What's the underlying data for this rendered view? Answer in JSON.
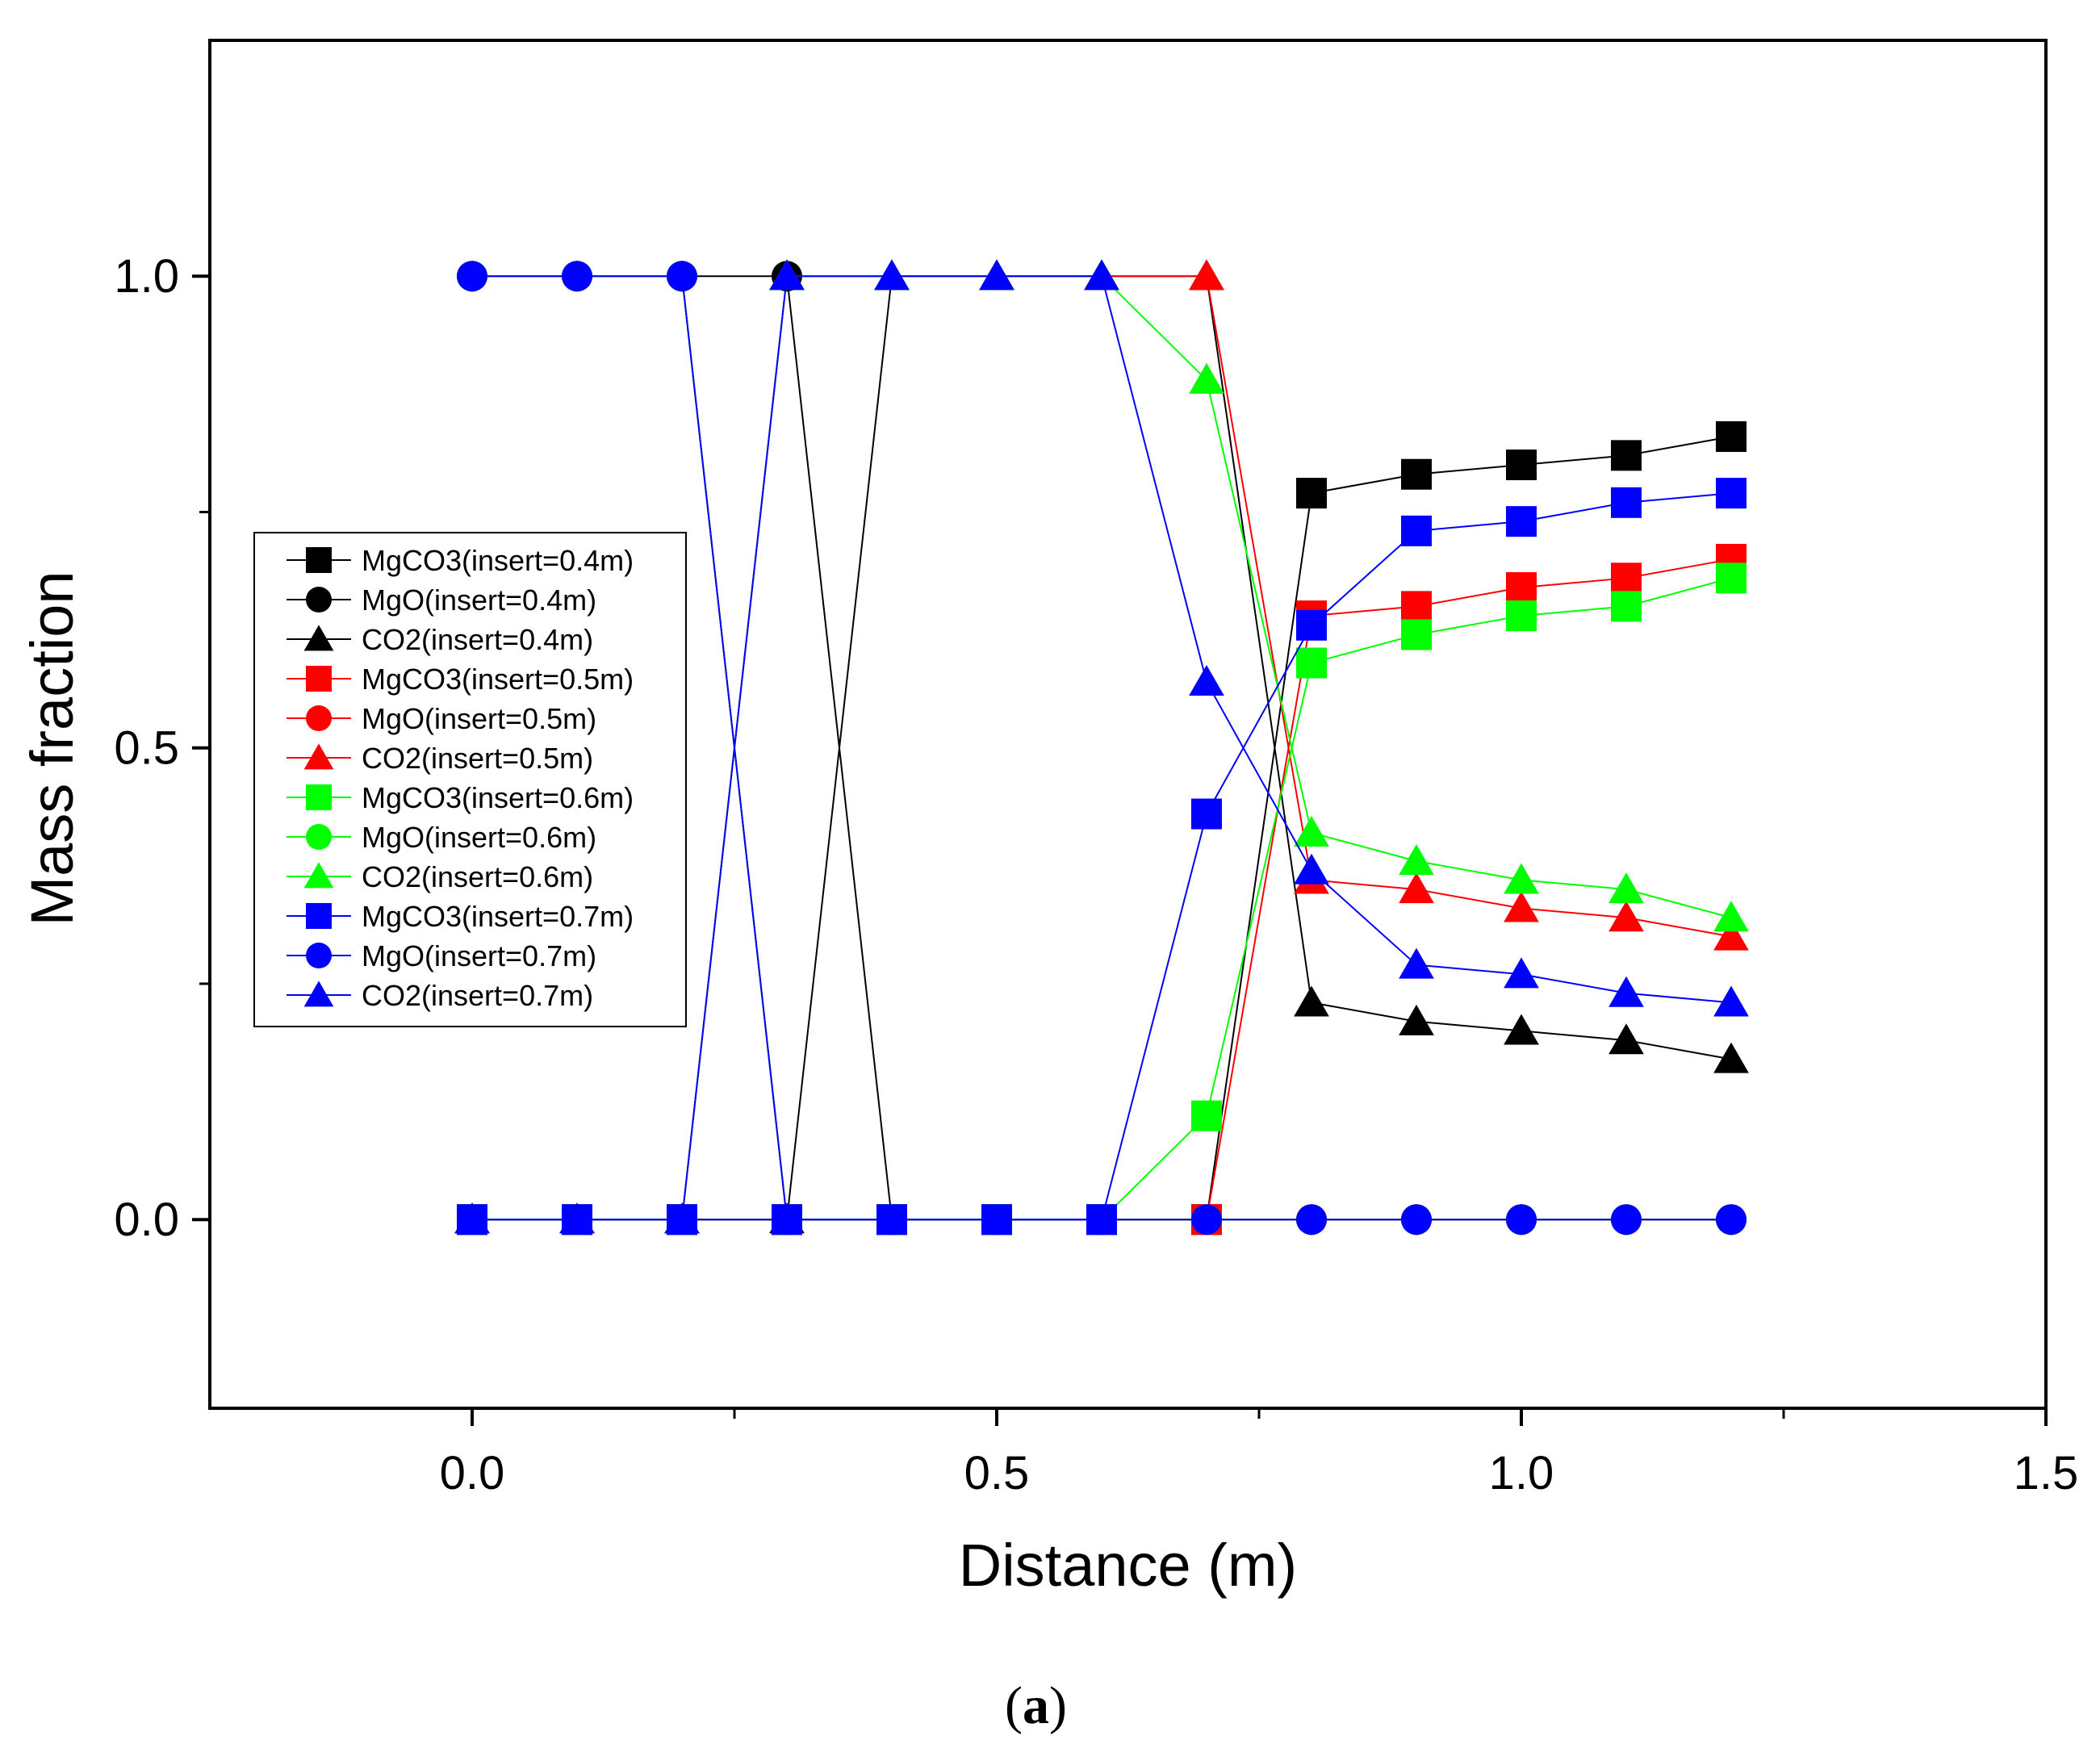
{
  "chart_data": {
    "type": "line",
    "title": "",
    "xlabel": "Distance (m)",
    "ylabel": "Mass fraction",
    "xlim": [
      -0.25,
      1.5
    ],
    "ylim": [
      -0.2,
      1.25
    ],
    "xticks": [
      0.0,
      0.5,
      1.0,
      1.5
    ],
    "xtick_labels": [
      "0.0",
      "0.5",
      "1.0",
      "1.5"
    ],
    "yticks": [
      0.0,
      0.5,
      1.0
    ],
    "ytick_labels": [
      "0.0",
      "0.5",
      "1.0"
    ],
    "grid": false,
    "legend_position": "center-left",
    "caption": "(a)",
    "series": [
      {
        "name": "MgCO3(insert=0.4m)",
        "color": "#000000",
        "marker": "square",
        "x": [
          0.0,
          0.1,
          0.2,
          0.3,
          0.4,
          0.5,
          0.6,
          0.7,
          0.8,
          0.9,
          1.0,
          1.1,
          1.2
        ],
        "y": [
          0,
          0,
          0,
          0,
          0,
          0,
          0,
          0,
          0.77,
          0.79,
          0.8,
          0.81,
          0.83
        ]
      },
      {
        "name": "MgO(insert=0.4m)",
        "color": "#000000",
        "marker": "circle",
        "x": [
          0.0,
          0.1,
          0.2,
          0.3,
          0.4,
          0.5,
          0.6,
          0.7,
          0.8,
          0.9,
          1.0,
          1.1,
          1.2
        ],
        "y": [
          1,
          1,
          1,
          1,
          0,
          0,
          0,
          0,
          0,
          0,
          0,
          0,
          0
        ]
      },
      {
        "name": "CO2(insert=0.4m)",
        "color": "#000000",
        "marker": "triangle",
        "x": [
          0.0,
          0.1,
          0.2,
          0.3,
          0.4,
          0.5,
          0.6,
          0.7,
          0.8,
          0.9,
          1.0,
          1.1,
          1.2
        ],
        "y": [
          0,
          0,
          0,
          0,
          1,
          1,
          1,
          1,
          0.23,
          0.21,
          0.2,
          0.19,
          0.17
        ]
      },
      {
        "name": "MgCO3(insert=0.5m)",
        "color": "#ff0000",
        "marker": "square",
        "x": [
          0.0,
          0.1,
          0.2,
          0.3,
          0.4,
          0.5,
          0.6,
          0.7,
          0.8,
          0.9,
          1.0,
          1.1,
          1.2
        ],
        "y": [
          0,
          0,
          0,
          0,
          0,
          0,
          0,
          0,
          0.64,
          0.65,
          0.67,
          0.68,
          0.7
        ]
      },
      {
        "name": "MgO(insert=0.5m)",
        "color": "#ff0000",
        "marker": "circle",
        "x": [
          0.0,
          0.1,
          0.2,
          0.3,
          0.4,
          0.5,
          0.6,
          0.7,
          0.8,
          0.9,
          1.0,
          1.1,
          1.2
        ],
        "y": [
          1,
          1,
          1,
          0,
          0,
          0,
          0,
          0,
          0,
          0,
          0,
          0,
          0
        ]
      },
      {
        "name": "CO2(insert=0.5m)",
        "color": "#ff0000",
        "marker": "triangle",
        "x": [
          0.0,
          0.1,
          0.2,
          0.3,
          0.4,
          0.5,
          0.6,
          0.7,
          0.8,
          0.9,
          1.0,
          1.1,
          1.2
        ],
        "y": [
          0,
          0,
          0,
          1,
          1,
          1,
          1,
          1,
          0.36,
          0.35,
          0.33,
          0.32,
          0.3
        ]
      },
      {
        "name": "MgCO3(insert=0.6m)",
        "color": "#00ff00",
        "marker": "square",
        "x": [
          0.0,
          0.1,
          0.2,
          0.3,
          0.4,
          0.5,
          0.6,
          0.7,
          0.8,
          0.9,
          1.0,
          1.1,
          1.2
        ],
        "y": [
          0,
          0,
          0,
          0,
          0,
          0,
          0,
          0.11,
          0.59,
          0.62,
          0.64,
          0.65,
          0.68
        ]
      },
      {
        "name": "MgO(insert=0.6m)",
        "color": "#00ff00",
        "marker": "circle",
        "x": [
          0.0,
          0.1,
          0.2,
          0.3,
          0.4,
          0.5,
          0.6,
          0.7,
          0.8,
          0.9,
          1.0,
          1.1,
          1.2
        ],
        "y": [
          1,
          1,
          1,
          0,
          0,
          0,
          0,
          0,
          0,
          0,
          0,
          0,
          0
        ]
      },
      {
        "name": "CO2(insert=0.6m)",
        "color": "#00ff00",
        "marker": "triangle",
        "x": [
          0.0,
          0.1,
          0.2,
          0.3,
          0.4,
          0.5,
          0.6,
          0.7,
          0.8,
          0.9,
          1.0,
          1.1,
          1.2
        ],
        "y": [
          0,
          0,
          0,
          1,
          1,
          1,
          1,
          0.89,
          0.41,
          0.38,
          0.36,
          0.35,
          0.32
        ]
      },
      {
        "name": "MgCO3(insert=0.7m)",
        "color": "#0000ff",
        "marker": "square",
        "x": [
          0.0,
          0.1,
          0.2,
          0.3,
          0.4,
          0.5,
          0.6,
          0.7,
          0.8,
          0.9,
          1.0,
          1.1,
          1.2
        ],
        "y": [
          0,
          0,
          0,
          0,
          0,
          0,
          0,
          0.43,
          0.63,
          0.73,
          0.74,
          0.76,
          0.77
        ]
      },
      {
        "name": "MgO(insert=0.7m)",
        "color": "#0000ff",
        "marker": "circle",
        "x": [
          0.0,
          0.1,
          0.2,
          0.3,
          0.4,
          0.5,
          0.6,
          0.7,
          0.8,
          0.9,
          1.0,
          1.1,
          1.2
        ],
        "y": [
          1,
          1,
          1,
          0,
          0,
          0,
          0,
          0,
          0,
          0,
          0,
          0,
          0
        ]
      },
      {
        "name": "CO2(insert=0.7m)",
        "color": "#0000ff",
        "marker": "triangle",
        "x": [
          0.0,
          0.1,
          0.2,
          0.3,
          0.4,
          0.5,
          0.6,
          0.7,
          0.8,
          0.9,
          1.0,
          1.1,
          1.2
        ],
        "y": [
          0,
          0,
          0,
          1,
          1,
          1,
          1,
          0.57,
          0.37,
          0.27,
          0.26,
          0.24,
          0.23
        ]
      }
    ]
  }
}
